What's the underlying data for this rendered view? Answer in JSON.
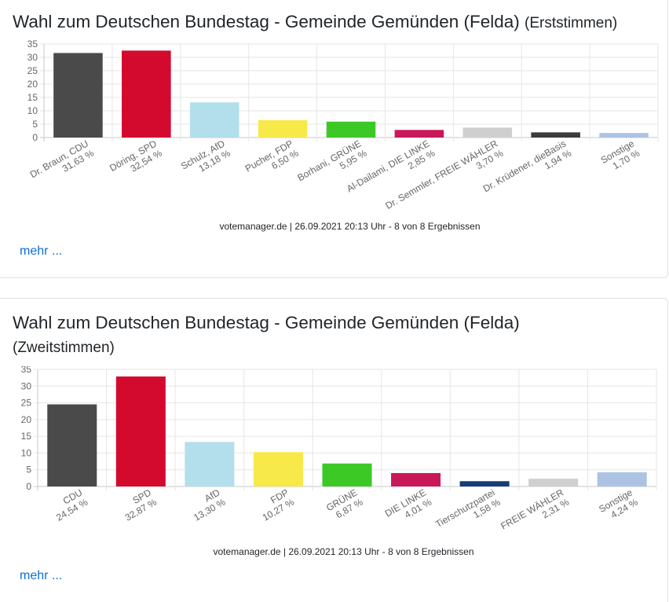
{
  "charts": [
    {
      "title": "Wahl zum Deutschen Bundestag - Gemeinde Gemünden (Felda)",
      "subtitle": "(Erststimmen)",
      "credit": "votemanager.de | 26.09.2021 20:13 Uhr - 8 von 8 Ergebnissen",
      "more_label": "mehr ..."
    },
    {
      "title": "Wahl zum Deutschen Bundestag - Gemeinde Gemünden (Felda)",
      "subtitle": "(Zweitstimmen)",
      "credit": "votemanager.de | 26.09.2021 20:13 Uhr - 8 von 8 Ergebnissen",
      "more_label": "mehr ..."
    }
  ],
  "chart_data": [
    {
      "type": "bar",
      "title": "Wahl zum Deutschen Bundestag - Gemeinde Gemünden (Felda) (Erststimmen)",
      "categories": [
        "Dr. Braun, CDU",
        "Döring, SPD",
        "Schulz, AfD",
        "Pucher, FDP",
        "Borhani, GRÜNE",
        "Al-Dailami, DIE LINKE",
        "Dr. Semmler, FREIE WÄHLER",
        "Dr. Krüdener, dieBasis",
        "Sonstige"
      ],
      "labels": [
        "31,63 %",
        "32,54 %",
        "13,18 %",
        "6,50 %",
        "5,95 %",
        "2,85 %",
        "3,70 %",
        "1,94 %",
        "1,70 %"
      ],
      "values": [
        31.63,
        32.54,
        13.18,
        6.5,
        5.95,
        2.85,
        3.7,
        1.94,
        1.7
      ],
      "colors": [
        "#4a4a4a",
        "#d4092e",
        "#b3deec",
        "#f8e94a",
        "#3cc926",
        "#c8185a",
        "#cfcfcf",
        "#3c3c3c",
        "#adc3e4"
      ],
      "yticks": [
        "0",
        "5",
        "10",
        "15",
        "20",
        "25",
        "30",
        "35"
      ],
      "ylim": [
        0,
        35
      ],
      "grid": true,
      "xlabel": "",
      "ylabel": ""
    },
    {
      "type": "bar",
      "title": "Wahl zum Deutschen Bundestag - Gemeinde Gemünden (Felda) (Zweitstimmen)",
      "categories": [
        "CDU",
        "SPD",
        "AfD",
        "FDP",
        "GRÜNE",
        "DIE LINKE",
        "Tierschutzpartei",
        "FREIE WÄHLER",
        "Sonstige"
      ],
      "labels": [
        "24,54 %",
        "32,87 %",
        "13,30 %",
        "10,27 %",
        "6,87 %",
        "4,01 %",
        "1,58 %",
        "2,31 %",
        "4,24 %"
      ],
      "values": [
        24.54,
        32.87,
        13.3,
        10.27,
        6.87,
        4.01,
        1.58,
        2.31,
        4.24
      ],
      "colors": [
        "#4a4a4a",
        "#d4092e",
        "#b3deec",
        "#f8e94a",
        "#3cc926",
        "#c8185a",
        "#173d78",
        "#cfcfcf",
        "#adc3e4"
      ],
      "yticks": [
        "0",
        "5",
        "10",
        "15",
        "20",
        "25",
        "30",
        "35"
      ],
      "ylim": [
        0,
        35
      ],
      "grid": true,
      "xlabel": "",
      "ylabel": ""
    }
  ]
}
